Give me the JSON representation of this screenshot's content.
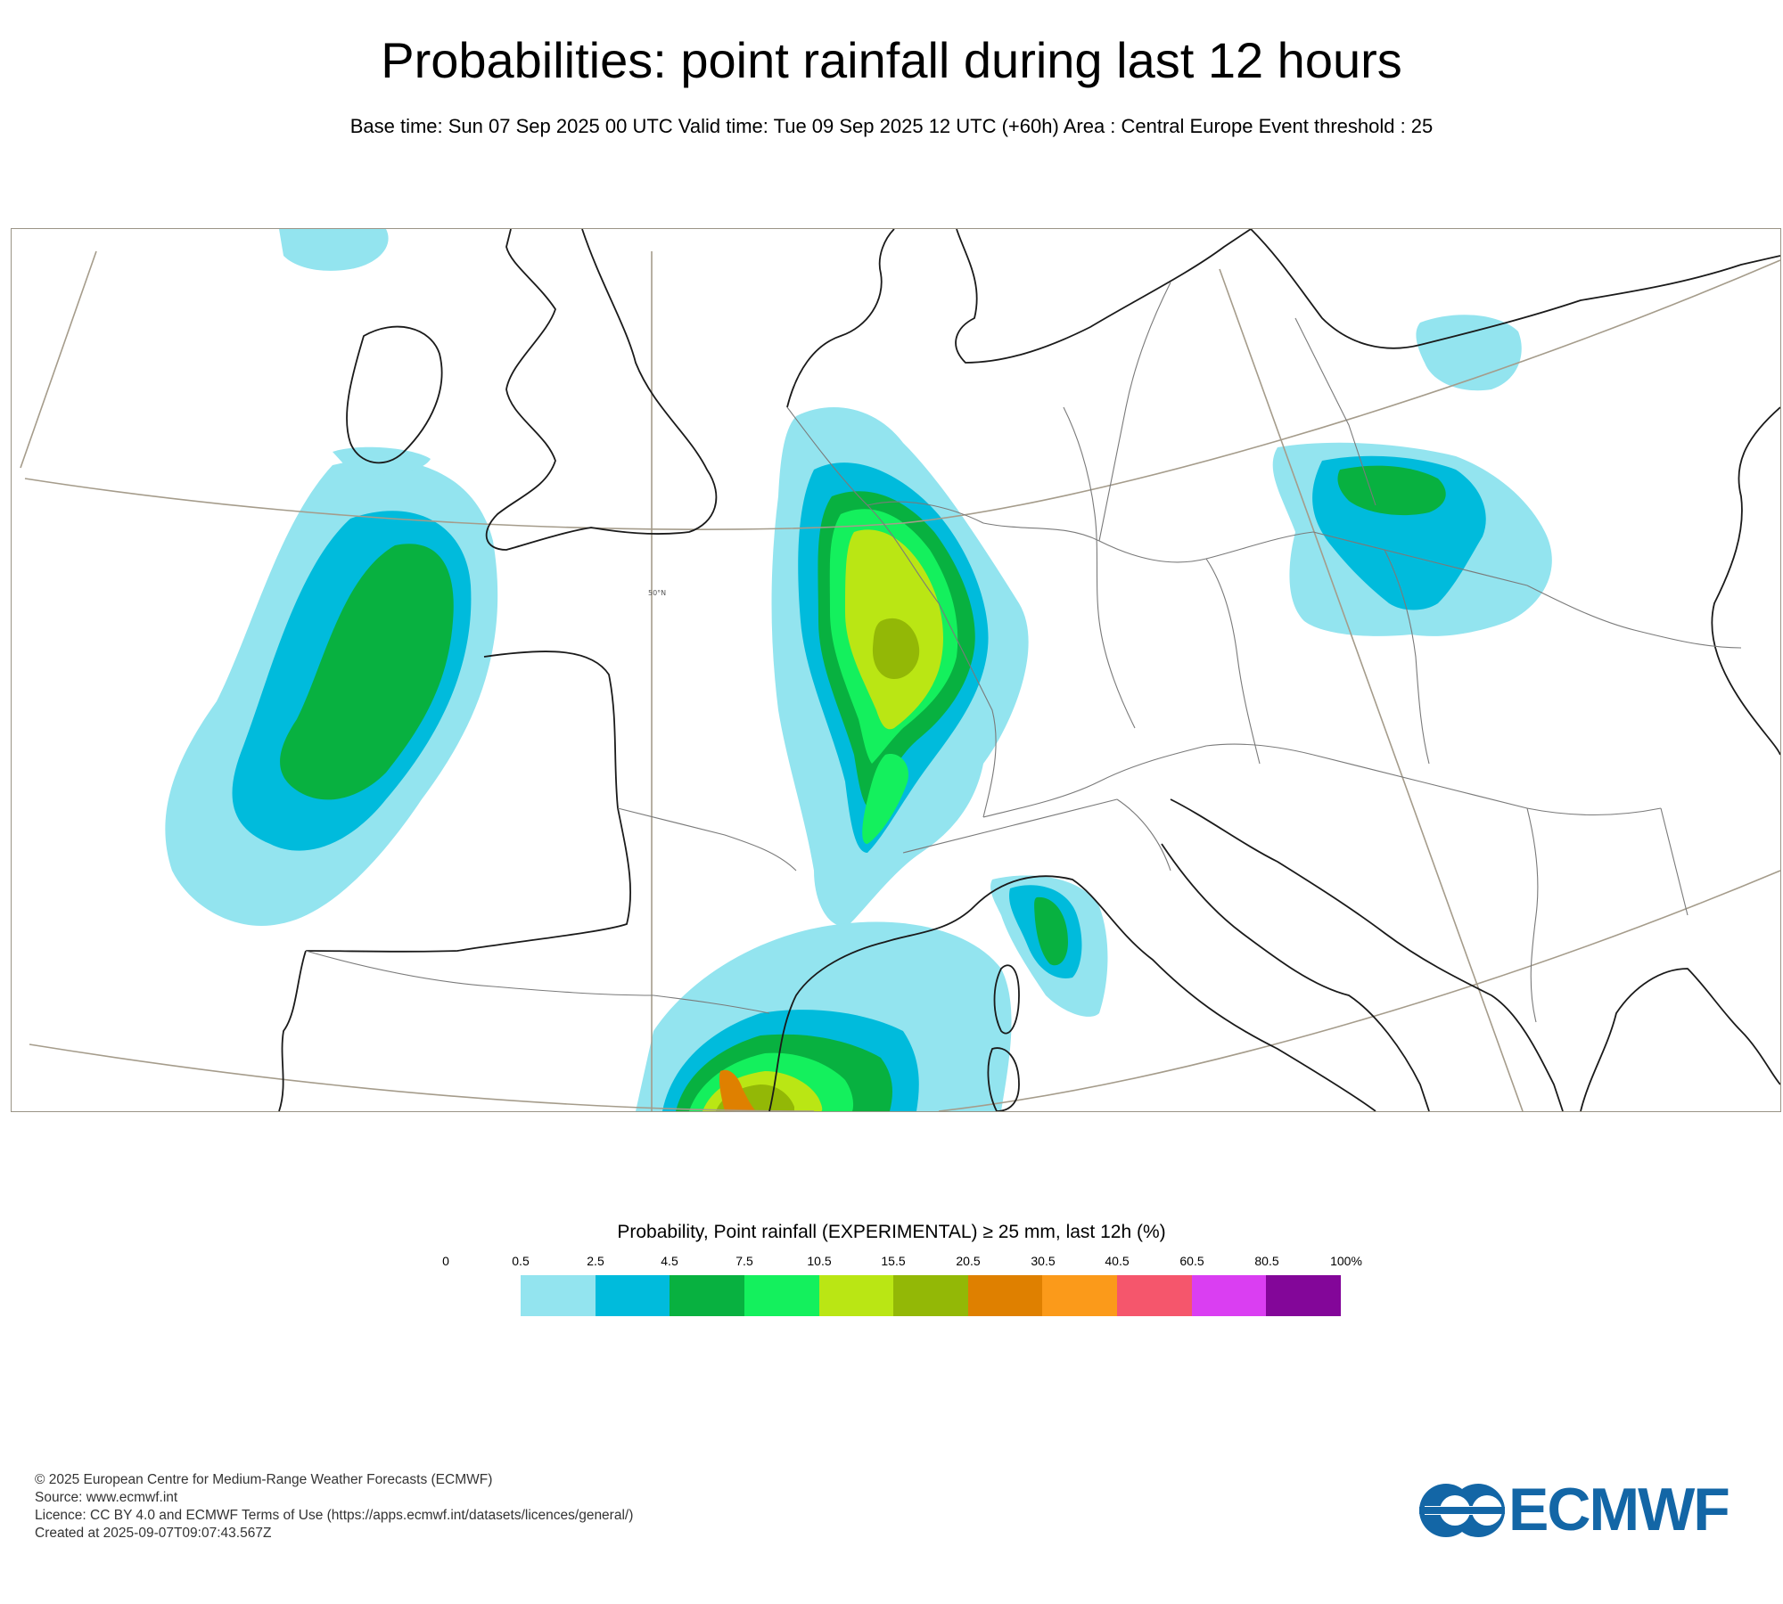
{
  "title": "Probabilities: point rainfall during last 12 hours",
  "subtitle": "Base time: Sun 07 Sep 2025 00 UTC Valid time: Tue 09 Sep 2025 12 UTC (+60h) Area : Central Europe Event threshold : 25",
  "map": {
    "area": "Central Europe",
    "latitude_label": "50°N",
    "colors": {
      "coastline": "#1a1a1a",
      "borders": "#7a7a7a",
      "graticule": "#a59c8b",
      "frame": "#9a9486"
    }
  },
  "legend": {
    "title": "Probability, Point rainfall (EXPERIMENTAL) ≥ 25 mm, last 12h (%)",
    "ticks": [
      "0",
      "0.5",
      "2.5",
      "4.5",
      "7.5",
      "10.5",
      "15.5",
      "20.5",
      "30.5",
      "40.5",
      "60.5",
      "80.5",
      "100%"
    ],
    "colors": [
      "#93e4ef",
      "#00bbdc",
      "#08b140",
      "#14f05d",
      "#bae614",
      "#93b806",
      "#df8000",
      "#fb9a1a",
      "#f5566c",
      "#da3ef2",
      "#830699"
    ]
  },
  "footer": {
    "copyright": "© 2025 European Centre for Medium-Range Weather Forecasts (ECMWF)",
    "source": "Source: www.ecmwf.int",
    "licence": "Licence: CC BY 4.0 and ECMWF Terms of Use (https://apps.ecmwf.int/datasets/licences/general/)",
    "created": "Created at 2025-09-07T09:07:43.567Z"
  },
  "logo": {
    "text": "ECMWF",
    "color": "#1366a6"
  }
}
